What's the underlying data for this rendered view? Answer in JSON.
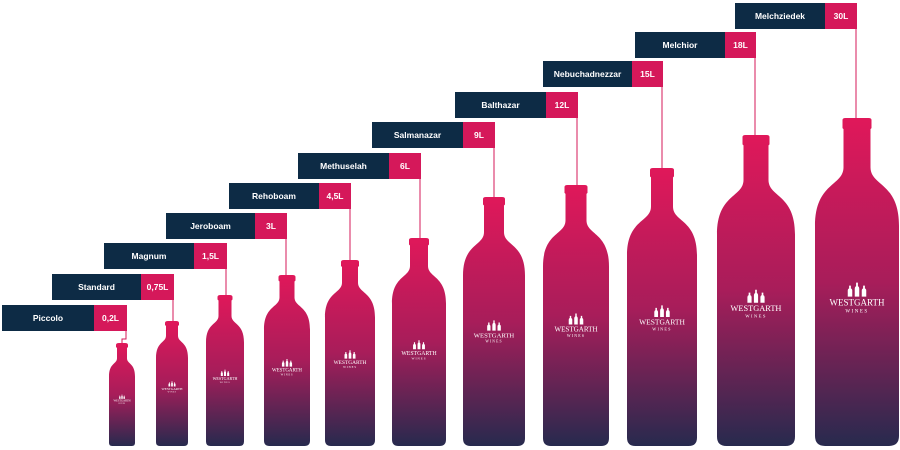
{
  "colors": {
    "label_dark": "#0d2b45",
    "label_accent": "#d5185a",
    "bottle_top": "#e0185a",
    "bottle_bottom": "#272a4e"
  },
  "brand": {
    "name": "WESTGARTH",
    "sub": "WINES",
    "logo_icon": "three-bottles-icon"
  },
  "bottles": [
    {
      "name": "Piccolo",
      "volume": "0,2L"
    },
    {
      "name": "Standard",
      "volume": "0,75L"
    },
    {
      "name": "Magnum",
      "volume": "1,5L"
    },
    {
      "name": "Jeroboam",
      "volume": "3L"
    },
    {
      "name": "Rehoboam",
      "volume": "4,5L"
    },
    {
      "name": "Methuselah",
      "volume": "6L"
    },
    {
      "name": "Salmanazar",
      "volume": "9L"
    },
    {
      "name": "Balthazar",
      "volume": "12L"
    },
    {
      "name": "Nebuchadnezzar",
      "volume": "15L"
    },
    {
      "name": "Melchior",
      "volume": "18L"
    },
    {
      "name": "Melchziedek",
      "volume": "30L"
    }
  ]
}
